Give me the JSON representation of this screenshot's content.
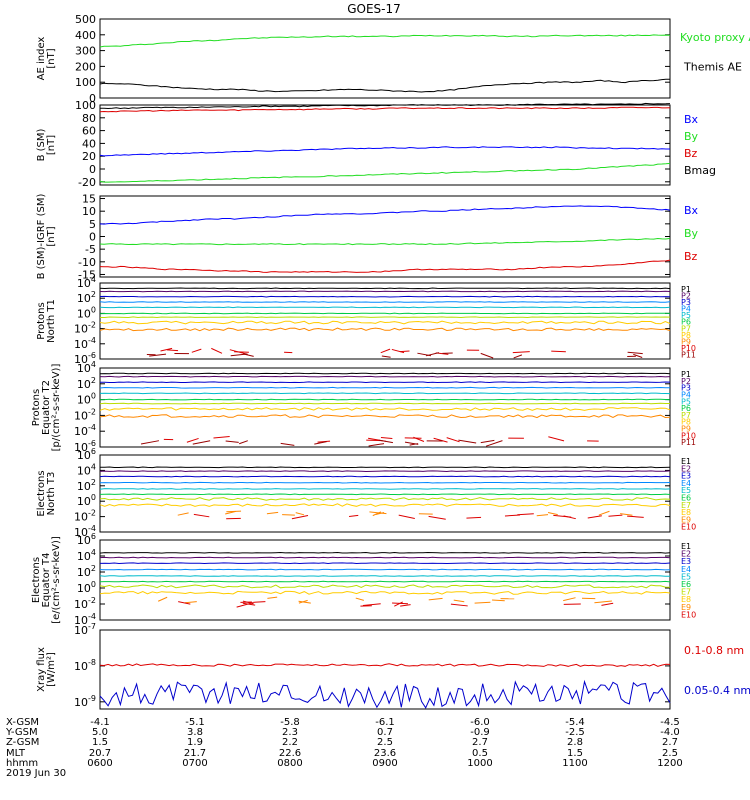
{
  "title": "GOES-17",
  "footer": {
    "labels": [
      "X-GSM",
      "Y-GSM",
      "Z-GSM",
      "MLT",
      "hhmm",
      "2019 Jun 30"
    ],
    "rows": [
      [
        "-4.1",
        "-5.1",
        "-5.8",
        "-6.1",
        "-6.0",
        "-5.4",
        "-4.5"
      ],
      [
        "5.0",
        "3.8",
        "2.3",
        "0.7",
        "-0.9",
        "-2.5",
        "-4.0"
      ],
      [
        "1.5",
        "1.9",
        "2.2",
        "2.5",
        "2.7",
        "2.8",
        "2.7"
      ],
      [
        "20.7",
        "21.7",
        "22.6",
        "23.6",
        "0.5",
        "1.5",
        "2.5"
      ],
      [
        "0600",
        "0700",
        "0800",
        "0900",
        "1000",
        "1100",
        "1200"
      ]
    ]
  },
  "chart_data": [
    {
      "type": "line",
      "ylabel": [
        "AE index",
        "[nT]"
      ],
      "yticks": [
        "500",
        "400",
        "300",
        "200",
        "100",
        "0"
      ],
      "ylim": [
        0,
        500
      ],
      "series": [
        {
          "name": "Kyoto proxy AE",
          "color": "#22dd22",
          "values": [
            325,
            330,
            340,
            350,
            360,
            365,
            375,
            380,
            385,
            385,
            390,
            390,
            390,
            390,
            395,
            395,
            395,
            395,
            390,
            390,
            395,
            395,
            395,
            395,
            398,
            400
          ]
        },
        {
          "name": "Themis AE",
          "color": "#000000",
          "values": [
            90,
            90,
            80,
            70,
            60,
            55,
            55,
            45,
            42,
            45,
            50,
            55,
            50,
            45,
            40,
            45,
            60,
            80,
            90,
            95,
            100,
            100,
            110,
            100,
            110,
            120
          ]
        }
      ]
    },
    {
      "type": "line",
      "ylabel": [
        "B (SM)",
        "[nT]"
      ],
      "yticks": [
        "100",
        "80",
        "60",
        "40",
        "20",
        "0",
        "-20"
      ],
      "ylim": [
        -25,
        100
      ],
      "series": [
        {
          "name": "Bx",
          "color": "#0000ff",
          "values": [
            21,
            22,
            23,
            24,
            25,
            26,
            27,
            28,
            29,
            30,
            31,
            32,
            32,
            33,
            33,
            34,
            34,
            34,
            34,
            34,
            34,
            33,
            33,
            32,
            32,
            31
          ]
        },
        {
          "name": "By",
          "color": "#22dd22",
          "values": [
            -20,
            -20,
            -19,
            -18,
            -17,
            -16,
            -15,
            -14,
            -13,
            -12,
            -11,
            -10,
            -9,
            -8,
            -7,
            -6,
            -5,
            -4,
            -3,
            -2,
            -1,
            0,
            2,
            4,
            6,
            8
          ]
        },
        {
          "name": "Bz",
          "color": "#dd0000",
          "values": [
            90,
            90,
            91,
            91,
            92,
            92,
            92,
            93,
            93,
            93,
            94,
            94,
            94,
            95,
            95,
            95,
            95,
            95,
            95,
            95,
            95,
            95,
            95,
            96,
            96,
            96
          ]
        },
        {
          "name": "Bmag",
          "color": "#000000",
          "values": [
            95,
            95,
            96,
            96,
            96,
            97,
            97,
            98,
            98,
            98,
            99,
            99,
            99,
            100,
            100,
            100,
            100,
            100,
            100,
            101,
            101,
            101,
            101,
            101,
            102,
            102
          ]
        }
      ]
    },
    {
      "type": "line",
      "ylabel": [
        "B (SM)-IGRF (SM)",
        "[nT]"
      ],
      "yticks": [
        "15",
        "10",
        "5",
        "0",
        "-5",
        "-10",
        "-15"
      ],
      "ylim": [
        -16,
        16
      ],
      "series": [
        {
          "name": "Bx",
          "color": "#0000ff",
          "values": [
            5,
            5,
            5.5,
            6,
            6.5,
            7,
            7,
            7.5,
            8,
            8.5,
            9,
            9,
            9,
            9.5,
            10,
            10,
            10.5,
            11,
            11,
            11.5,
            12,
            12,
            12,
            11.5,
            11,
            10.5
          ]
        },
        {
          "name": "By",
          "color": "#22dd22",
          "values": [
            -3,
            -3,
            -3,
            -3,
            -3,
            -3,
            -3,
            -3,
            -3,
            -3,
            -3,
            -3,
            -3,
            -3,
            -3,
            -3,
            -2.8,
            -2.6,
            -2.4,
            -2.2,
            -2,
            -1.8,
            -1.5,
            -1.2,
            -1,
            -0.8
          ]
        },
        {
          "name": "Bz",
          "color": "#dd0000",
          "values": [
            -12,
            -12,
            -12.5,
            -13,
            -13,
            -13.5,
            -13.5,
            -14,
            -14,
            -14,
            -14,
            -14,
            -14,
            -13.5,
            -13,
            -13,
            -13,
            -13,
            -13,
            -12.5,
            -12,
            -12,
            -11.5,
            -11,
            -10,
            -9.5
          ]
        }
      ]
    },
    {
      "type": "line",
      "ylabel": [
        "Protons",
        "North T1"
      ],
      "log": true,
      "yticks": [
        "10^4",
        "10^2",
        "10^0",
        "10^-2",
        "10^-4",
        "10^-6"
      ],
      "ylim": [
        -6,
        4
      ],
      "legend": [
        "P1",
        "P2",
        "P3",
        "P4",
        "P5",
        "P6",
        "P7",
        "P8",
        "P9",
        "P10",
        "P11"
      ],
      "levels": [
        3.3,
        2.9,
        2.2,
        1.5,
        0.8,
        0.0,
        -0.5,
        -1.2,
        -2.1,
        -5.0,
        -5.5
      ],
      "colors": [
        "#000000",
        "#550066",
        "#0000cc",
        "#0088ff",
        "#00bbcc",
        "#00cc44",
        "#bbdd00",
        "#ffcc00",
        "#ff8800",
        "#dd0000",
        "#990000"
      ]
    },
    {
      "type": "line",
      "ylabel": [
        "Protons",
        "Equator T2",
        "[p/(cm²-s-sr-keV)]"
      ],
      "log": true,
      "yticks": [
        "10^4",
        "10^2",
        "10^0",
        "10^-2",
        "10^-4",
        "10^-6"
      ],
      "ylim": [
        -6,
        4
      ],
      "legend": [
        "P1",
        "P2",
        "P3",
        "P4",
        "P5",
        "P6",
        "P7",
        "P8",
        "P9",
        "P10",
        "P11"
      ],
      "levels": [
        3.3,
        2.9,
        2.2,
        1.5,
        0.8,
        0.0,
        -0.5,
        -1.2,
        -2.1,
        -5.0,
        -5.5
      ],
      "colors": [
        "#000000",
        "#550066",
        "#0000cc",
        "#0088ff",
        "#00bbcc",
        "#00cc44",
        "#bbdd00",
        "#ffcc00",
        "#ff8800",
        "#dd0000",
        "#990000"
      ]
    },
    {
      "type": "line",
      "ylabel": [
        "Electrons",
        "North T3"
      ],
      "log": true,
      "yticks": [
        "10^6",
        "10^4",
        "10^2",
        "10^0",
        "10^-2",
        "10^-4"
      ],
      "ylim": [
        -4,
        6
      ],
      "legend": [
        "E1",
        "E2",
        "E3",
        "E4",
        "E5",
        "E6",
        "E7",
        "E8",
        "E9",
        "E10"
      ],
      "levels": [
        4.4,
        3.9,
        3.2,
        2.4,
        1.6,
        0.9,
        0.3,
        -0.5,
        -1.5,
        -2.0
      ],
      "colors": [
        "#000000",
        "#550066",
        "#0000cc",
        "#0088ff",
        "#00bbcc",
        "#00cc44",
        "#bbdd00",
        "#ffcc00",
        "#ff8800",
        "#dd0000"
      ]
    },
    {
      "type": "line",
      "ylabel": [
        "Electrons",
        "Equator T4",
        "[e/(cm²-s-sr-keV)]"
      ],
      "log": true,
      "yticks": [
        "10^6",
        "10^4",
        "10^2",
        "10^0",
        "10^-2",
        "10^-4"
      ],
      "ylim": [
        -4,
        6
      ],
      "legend": [
        "E1",
        "E2",
        "E3",
        "E4",
        "E5",
        "E6",
        "E7",
        "E8",
        "E9",
        "E10"
      ],
      "levels": [
        4.4,
        3.8,
        3.1,
        2.3,
        1.5,
        0.8,
        0.2,
        -0.6,
        -1.5,
        -2.0
      ],
      "colors": [
        "#000000",
        "#550066",
        "#0000cc",
        "#0088ff",
        "#00bbcc",
        "#00cc44",
        "#bbdd00",
        "#ffcc00",
        "#ff8800",
        "#dd0000"
      ]
    },
    {
      "type": "line",
      "ylabel": [
        "Xray flux",
        "[W/m²]"
      ],
      "log": true,
      "yticks": [
        "10^-7",
        "10^-8",
        "10^-9"
      ],
      "ylim": [
        -9.2,
        -7
      ],
      "series": [
        {
          "name": "0.1-0.8 nm",
          "color": "#dd0000",
          "values": [
            -7.97,
            -7.98,
            -7.97,
            -7.99,
            -7.98
          ]
        },
        {
          "name": "0.05-0.4 nm",
          "color": "#0000cc",
          "values": [
            -8.8,
            -8.7,
            -8.85,
            -8.75,
            -8.8
          ]
        }
      ]
    }
  ]
}
